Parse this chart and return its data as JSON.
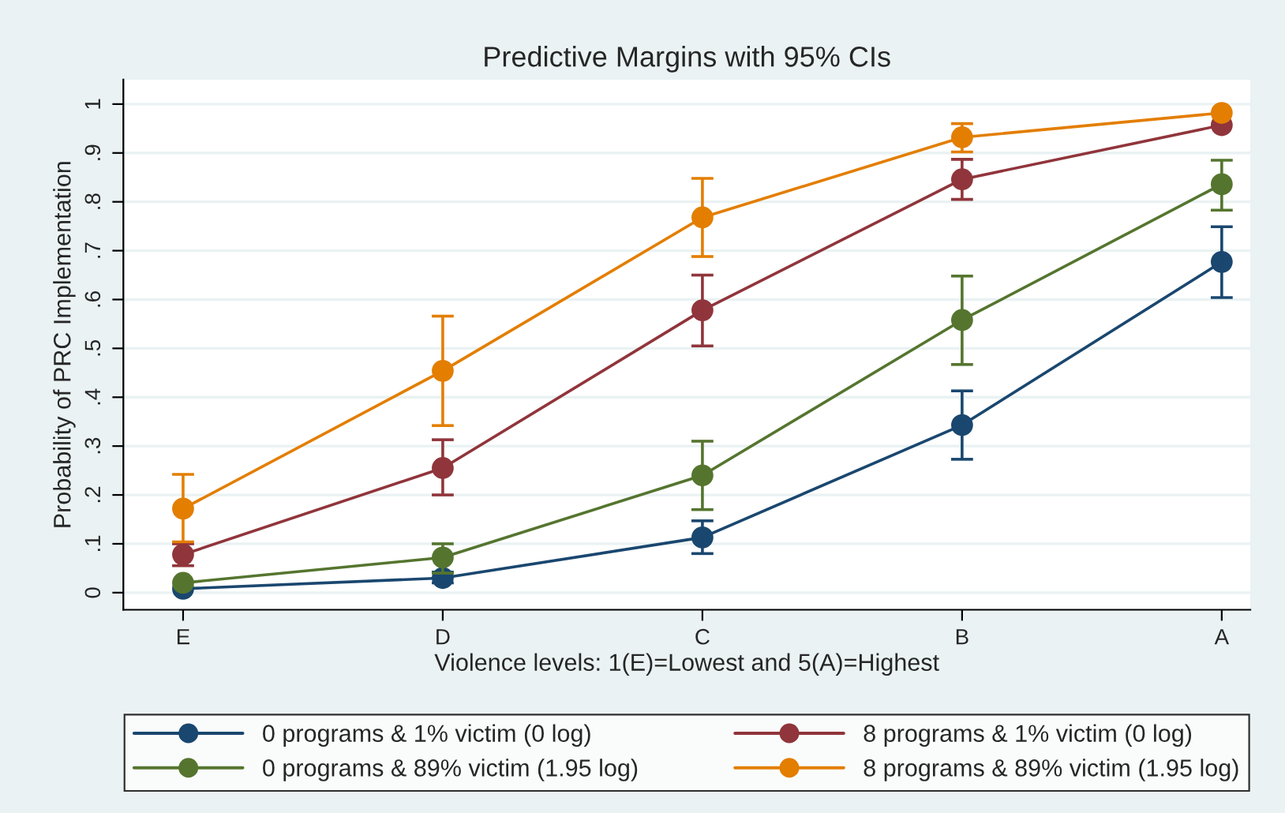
{
  "chart_data": {
    "type": "line",
    "title": "Predictive Margins with 95% CIs",
    "xlabel": "Violence levels: 1(E)=Lowest and 5(A)=Highest",
    "ylabel": "Probability of PRC Implementation",
    "categories": [
      "E",
      "D",
      "C",
      "B",
      "A"
    ],
    "series": [
      {
        "name": "0 programs & 1% victim (0 log)",
        "color": "#1a476f",
        "values": [
          0.008,
          0.03,
          0.113,
          0.343,
          0.677
        ],
        "errors": [
          null,
          [
            0.02,
            0.042
          ],
          [
            0.08,
            0.147
          ],
          [
            0.273,
            0.413
          ],
          [
            0.604,
            0.749
          ]
        ]
      },
      {
        "name": "8 programs & 1% victim (0 log)",
        "color": "#90353b",
        "values": [
          0.078,
          0.255,
          0.578,
          0.846,
          0.957
        ],
        "errors": [
          [
            0.055,
            0.1
          ],
          [
            0.2,
            0.313
          ],
          [
            0.505,
            0.65
          ],
          [
            0.805,
            0.887
          ],
          null
        ]
      },
      {
        "name": "0 programs & 89% victim (1.95 log)",
        "color": "#55752f",
        "values": [
          0.02,
          0.072,
          0.24,
          0.558,
          0.836
        ],
        "errors": [
          null,
          [
            0.04,
            0.1
          ],
          [
            0.17,
            0.31
          ],
          [
            0.467,
            0.648
          ],
          [
            0.783,
            0.885
          ]
        ]
      },
      {
        "name": "8 programs & 89% victim (1.95 log)",
        "color": "#e37e00",
        "values": [
          0.172,
          0.454,
          0.768,
          0.932,
          0.982
        ],
        "errors": [
          [
            0.104,
            0.242
          ],
          [
            0.342,
            0.566
          ],
          [
            0.688,
            0.848
          ],
          [
            0.902,
            0.96
          ],
          null
        ]
      }
    ],
    "ylim": [
      -0.035,
      1.05
    ],
    "yticks": [
      0,
      {
        "value": 0.1,
        "label": ".1"
      },
      {
        "value": 0.2,
        "label": ".2"
      },
      {
        "value": 0.3,
        "label": ".3"
      },
      {
        "value": 0.4,
        "label": ".4"
      },
      {
        "value": 0.5,
        "label": ".5"
      },
      {
        "value": 0.6,
        "label": ".6"
      },
      {
        "value": 0.7,
        "label": ".7"
      },
      {
        "value": 0.8,
        "label": ".8"
      },
      {
        "value": 0.9,
        "label": ".9"
      },
      1
    ],
    "grid": "y",
    "legend": "bottom",
    "marker": "circle",
    "line_style": "solid"
  }
}
